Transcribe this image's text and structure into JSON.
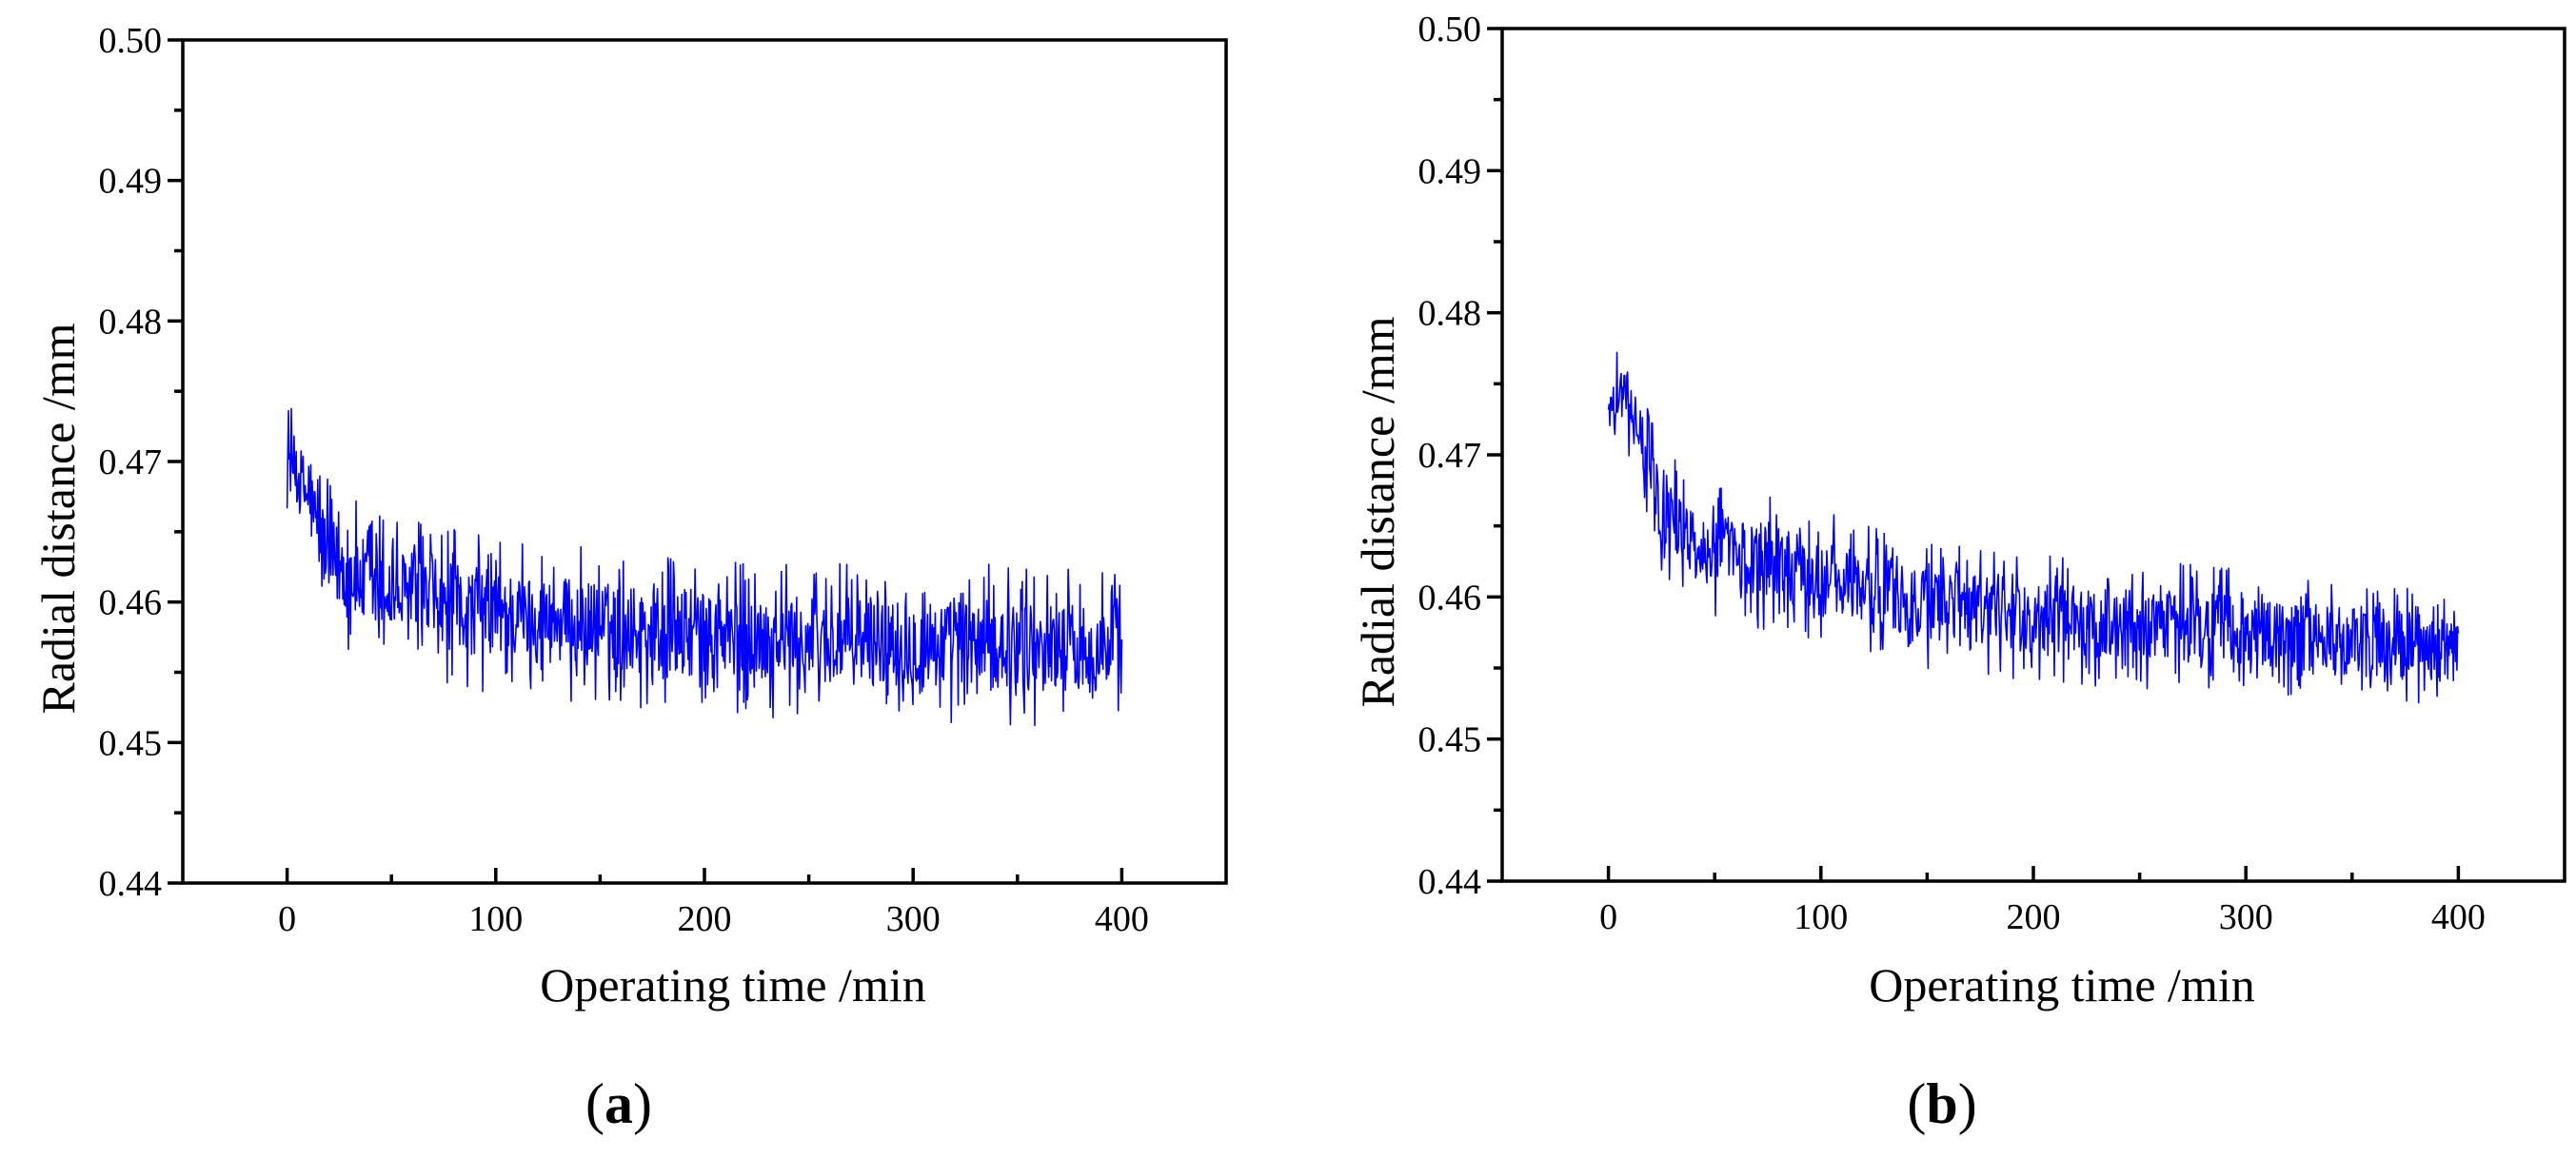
{
  "colors": {
    "series": "#0000ff",
    "axis": "#000000",
    "background": "#ffffff"
  },
  "chart_data": [
    {
      "id": "a",
      "panel_label": "a",
      "type": "line",
      "xlabel": "Operating time /min",
      "ylabel": "Radial distance /mm",
      "xlim": [
        -50,
        450
      ],
      "ylim": [
        0.44,
        0.5
      ],
      "xticks": [
        0,
        100,
        200,
        300,
        400
      ],
      "xtick_labels": [
        "0",
        "100",
        "200",
        "300",
        "400"
      ],
      "yticks": [
        0.44,
        0.45,
        0.46,
        0.47,
        0.48,
        0.49,
        0.5
      ],
      "ytick_labels": [
        "0.44",
        "0.45",
        "0.46",
        "0.47",
        "0.48",
        "0.49",
        "0.50"
      ],
      "grid": false,
      "legend": "none",
      "series": [
        {
          "color": "#0000ff",
          "x_range": [
            0,
            400
          ],
          "trend": [
            [
              0,
              0.4705
            ],
            [
              10,
              0.4675
            ],
            [
              20,
              0.463
            ],
            [
              35,
              0.4615
            ],
            [
              55,
              0.4605
            ],
            [
              80,
              0.4595
            ],
            [
              110,
              0.459
            ],
            [
              150,
              0.4583
            ],
            [
              200,
              0.4575
            ],
            [
              260,
              0.4572
            ],
            [
              330,
              0.457
            ],
            [
              400,
              0.4567
            ]
          ],
          "noise_amplitude": [
            [
              0,
              0.004
            ],
            [
              20,
              0.0055
            ],
            [
              60,
              0.0058
            ],
            [
              200,
              0.0056
            ],
            [
              400,
              0.0058
            ]
          ],
          "y_min": 0.4485,
          "y_max": 0.4755,
          "points": 1200
        }
      ]
    },
    {
      "id": "b",
      "panel_label": "b",
      "type": "line",
      "xlabel": "Operating time /min",
      "ylabel": "Radial distance /mm",
      "xlim": [
        -50,
        450
      ],
      "ylim": [
        0.44,
        0.5
      ],
      "xticks": [
        0,
        100,
        200,
        300,
        400
      ],
      "xtick_labels": [
        "0",
        "100",
        "200",
        "300",
        "400"
      ],
      "yticks": [
        0.44,
        0.45,
        0.46,
        0.47,
        0.48,
        0.49,
        0.5
      ],
      "ytick_labels": [
        "0.44",
        "0.45",
        "0.46",
        "0.47",
        "0.48",
        "0.49",
        "0.50"
      ],
      "grid": false,
      "legend": "none",
      "series": [
        {
          "color": "#0000ff",
          "x_range": [
            0,
            400
          ],
          "trend": [
            [
              0,
              0.4735
            ],
            [
              8,
              0.4745
            ],
            [
              15,
              0.471
            ],
            [
              25,
              0.466
            ],
            [
              45,
              0.4635
            ],
            [
              80,
              0.4622
            ],
            [
              120,
              0.4605
            ],
            [
              170,
              0.459
            ],
            [
              220,
              0.4583
            ],
            [
              280,
              0.4578
            ],
            [
              340,
              0.457
            ],
            [
              400,
              0.456
            ]
          ],
          "noise_amplitude": [
            [
              0,
              0.003
            ],
            [
              20,
              0.0045
            ],
            [
              60,
              0.0048
            ],
            [
              200,
              0.0046
            ],
            [
              400,
              0.0042
            ]
          ],
          "y_min": 0.45,
          "y_max": 0.478,
          "points": 1200
        }
      ]
    }
  ]
}
